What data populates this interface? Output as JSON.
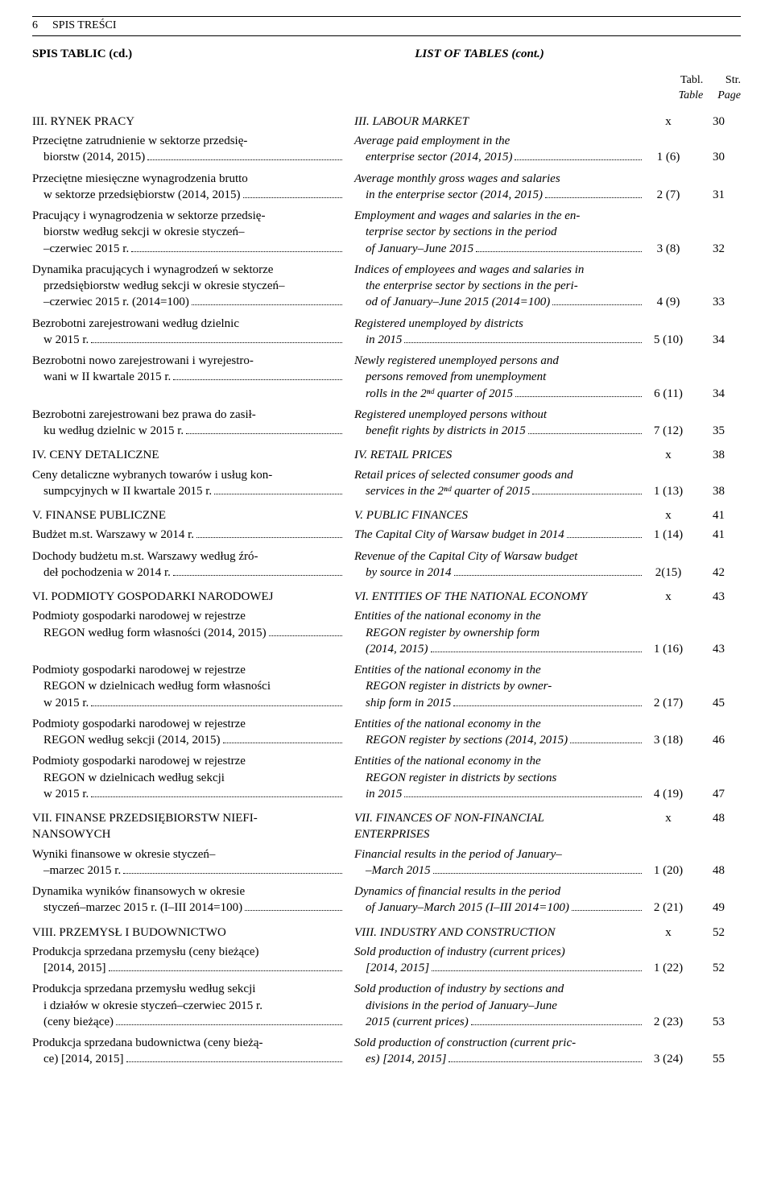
{
  "pageNumber": "6",
  "pageHeader": "SPIS TREŚCI",
  "titleLeft": "SPIS TABLIC (cd.)",
  "titleRight": "LIST OF TABLES (cont.)",
  "colHeaders": {
    "tabl": "Tabl.",
    "tablIt": "Table",
    "str": "Str.",
    "strIt": "Page"
  },
  "sections": [
    {
      "pl": "III. RYNEK PRACY",
      "en": "III. LABOUR MARKET",
      "tabl": "x",
      "page": "30",
      "items": [
        {
          "plLines": [
            "Przeciętne zatrudnienie w sektorze przedsię-",
            "biorstw (2014, 2015)"
          ],
          "enLines": [
            "Average paid employment in the",
            "enterprise sector (2014, 2015)"
          ],
          "tabl": "1 (6)",
          "page": "30"
        },
        {
          "plLines": [
            "Przeciętne miesięczne wynagrodzenia brutto",
            "w sektorze przedsiębiorstw (2014, 2015)"
          ],
          "enLines": [
            "Average monthly gross wages and salaries",
            "in the enterprise sector (2014, 2015)"
          ],
          "tabl": "2 (7)",
          "page": "31"
        },
        {
          "plLines": [
            "Pracujący i wynagrodzenia w sektorze przedsię-",
            "biorstw według sekcji w okresie styczeń–",
            "–czerwiec 2015 r."
          ],
          "enLines": [
            "Employment and wages and salaries in the en-",
            "terprise sector by sections in the period",
            "of January–June 2015"
          ],
          "tabl": "3 (8)",
          "page": "32"
        },
        {
          "plLines": [
            "Dynamika pracujących i wynagrodzeń w sektorze",
            "przedsiębiorstw według sekcji w okresie styczeń–",
            "–czerwiec 2015 r. (2014=100)"
          ],
          "enLines": [
            "Indices of employees and wages and salaries in",
            "the enterprise sector by sections in the peri-",
            "od of January–June 2015 (2014=100)"
          ],
          "tabl": "4 (9)",
          "page": "33"
        },
        {
          "plLines": [
            "Bezrobotni zarejestrowani według dzielnic",
            "w 2015 r."
          ],
          "enLines": [
            "Registered unemployed by districts",
            "in 2015"
          ],
          "tabl": "5 (10)",
          "page": "34"
        },
        {
          "plLines": [
            "Bezrobotni nowo zarejestrowani i wyrejestro-",
            "wani w II kwartale 2015 r."
          ],
          "enLines": [
            "Newly registered unemployed persons and",
            "persons removed from unemployment",
            "rolls in the 2ⁿᵈ quarter of 2015"
          ],
          "tabl": "6 (11)",
          "page": "34"
        },
        {
          "plLines": [
            "Bezrobotni zarejestrowani bez prawa do zasił-",
            "ku według dzielnic w 2015 r."
          ],
          "enLines": [
            "Registered unemployed persons without",
            "benefit rights by districts in 2015"
          ],
          "tabl": "7 (12)",
          "page": "35"
        }
      ]
    },
    {
      "pl": "IV. CENY DETALICZNE",
      "en": "IV. RETAIL PRICES",
      "tabl": "x",
      "page": "38",
      "items": [
        {
          "plLines": [
            "Ceny detaliczne wybranych towarów i usług kon-",
            "sumpcyjnych w II kwartale 2015 r."
          ],
          "enLines": [
            "Retail prices of selected consumer goods and",
            "services in the 2ⁿᵈ quarter of 2015"
          ],
          "tabl": "1 (13)",
          "page": "38"
        }
      ]
    },
    {
      "pl": "V. FINANSE PUBLICZNE",
      "en": "V. PUBLIC FINANCES",
      "tabl": "x",
      "page": "41",
      "items": [
        {
          "plLines": [
            "Budżet m.st. Warszawy w 2014 r."
          ],
          "enLines": [
            "The Capital City of Warsaw budget in 2014"
          ],
          "tabl": "1 (14)",
          "page": "41"
        },
        {
          "plLines": [
            "Dochody budżetu m.st. Warszawy według źró-",
            "deł pochodzenia w 2014 r."
          ],
          "enLines": [
            "Revenue of the Capital City of Warsaw budget",
            "by source in 2014"
          ],
          "tabl": "2(15)",
          "page": "42"
        }
      ]
    },
    {
      "pl": "VI. PODMIOTY GOSPODARKI NARODOWEJ",
      "en": "VI. ENTITIES OF THE NATIONAL ECONOMY",
      "tabl": "x",
      "page": "43",
      "items": [
        {
          "plLines": [
            "Podmioty gospodarki narodowej w rejestrze",
            "REGON według form własności (2014, 2015)"
          ],
          "enLines": [
            "Entities of the national economy in the",
            "REGON register by ownership form",
            "(2014, 2015)"
          ],
          "tabl": "1 (16)",
          "page": "43"
        },
        {
          "plLines": [
            "Podmioty gospodarki narodowej w rejestrze",
            "REGON w dzielnicach według form własności",
            "w 2015 r."
          ],
          "enLines": [
            "Entities of the national economy in the",
            "REGON register in districts by owner-",
            "ship form in 2015"
          ],
          "tabl": "2 (17)",
          "page": "45"
        },
        {
          "plLines": [
            "Podmioty gospodarki narodowej w rejestrze",
            "REGON według sekcji (2014, 2015)"
          ],
          "enLines": [
            "Entities of the national economy in the",
            "REGON register by sections (2014, 2015)"
          ],
          "tabl": "3 (18)",
          "page": "46"
        },
        {
          "plLines": [
            "Podmioty gospodarki narodowej w rejestrze",
            "REGON w dzielnicach według sekcji",
            "w 2015 r."
          ],
          "enLines": [
            "Entities of the national economy in the",
            "REGON register in districts by sections",
            "in 2015"
          ],
          "tabl": "4 (19)",
          "page": "47"
        }
      ]
    },
    {
      "pl": "VII. FINANSE PRZEDSIĘBIORSTW NIEFI-\n  NANSOWYCH",
      "en": "VII. FINANCES OF NON-FINANCIAL\n  ENTERPRISES",
      "tabl": "x",
      "page": "48",
      "items": [
        {
          "plLines": [
            "Wyniki finansowe w okresie styczeń–",
            "–marzec 2015 r."
          ],
          "enLines": [
            "Financial results in the period of January–",
            "–March 2015"
          ],
          "tabl": "1 (20)",
          "page": "48"
        },
        {
          "plLines": [
            "Dynamika wyników finansowych w okresie",
            "styczeń–marzec 2015 r. (I–III 2014=100)"
          ],
          "enLines": [
            "Dynamics of financial results in the period",
            "of January–March 2015 (I–III 2014=100)"
          ],
          "tabl": "2 (21)",
          "page": "49"
        }
      ]
    },
    {
      "pl": "VIII. PRZEMYSŁ I BUDOWNICTWO",
      "en": "VIII. INDUSTRY AND CONSTRUCTION",
      "tabl": "x",
      "page": "52",
      "items": [
        {
          "plLines": [
            "Produkcja sprzedana przemysłu (ceny bieżące)",
            "[2014, 2015]"
          ],
          "enLines": [
            "Sold production of industry (current prices)",
            "[2014, 2015]"
          ],
          "tabl": "1 (22)",
          "page": "52"
        },
        {
          "plLines": [
            "Produkcja sprzedana przemysłu według sekcji",
            "i działów w okresie styczeń–czerwiec 2015 r.",
            "(ceny bieżące)"
          ],
          "enLines": [
            "Sold production of industry by sections and",
            "divisions in the period of January–June",
            "2015 (current prices)"
          ],
          "tabl": "2 (23)",
          "page": "53"
        },
        {
          "plLines": [
            "Produkcja sprzedana budownictwa (ceny bieżą-",
            "ce) [2014, 2015]"
          ],
          "enLines": [
            "Sold production of construction (current pric-",
            "es) [2014, 2015]"
          ],
          "tabl": "3 (24)",
          "page": "55"
        }
      ]
    }
  ]
}
